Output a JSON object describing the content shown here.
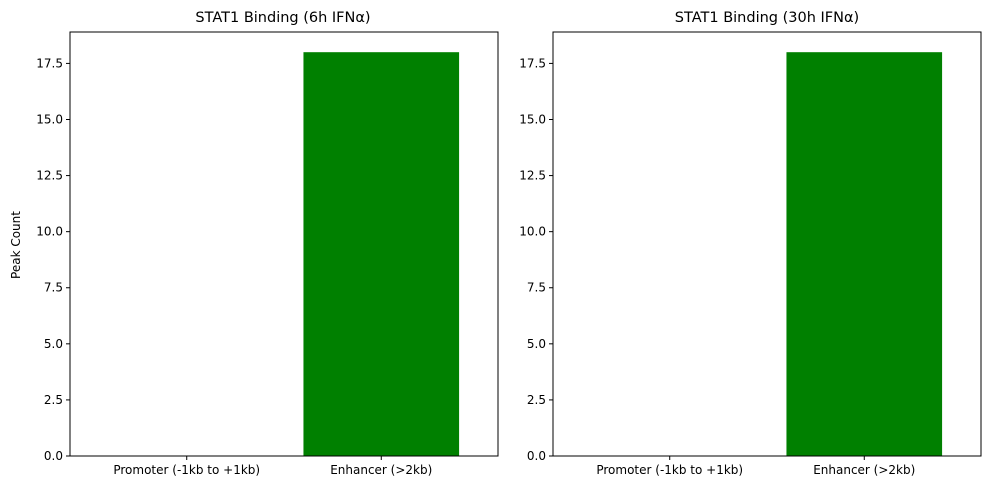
{
  "chart_data": [
    {
      "type": "bar",
      "title": "STAT1 Binding (6h IFNα)",
      "categories": [
        "Promoter (-1kb to +1kb)",
        "Enhancer (>2kb)"
      ],
      "values": [
        0,
        18
      ],
      "bar_color": "#008000",
      "xlabel": "",
      "ylabel": "Peak Count",
      "ylim": [
        0,
        18.9
      ],
      "yticks": [
        "0.0",
        "2.5",
        "5.0",
        "7.5",
        "10.0",
        "12.5",
        "15.0",
        "17.5"
      ],
      "grid": false
    },
    {
      "type": "bar",
      "title": "STAT1 Binding (30h IFNα)",
      "categories": [
        "Promoter (-1kb to +1kb)",
        "Enhancer (>2kb)"
      ],
      "values": [
        0,
        18
      ],
      "bar_color": "#008000",
      "xlabel": "",
      "ylabel": "",
      "ylim": [
        0,
        18.9
      ],
      "yticks": [
        "0.0",
        "2.5",
        "5.0",
        "7.5",
        "10.0",
        "12.5",
        "15.0",
        "17.5"
      ],
      "grid": false
    }
  ]
}
